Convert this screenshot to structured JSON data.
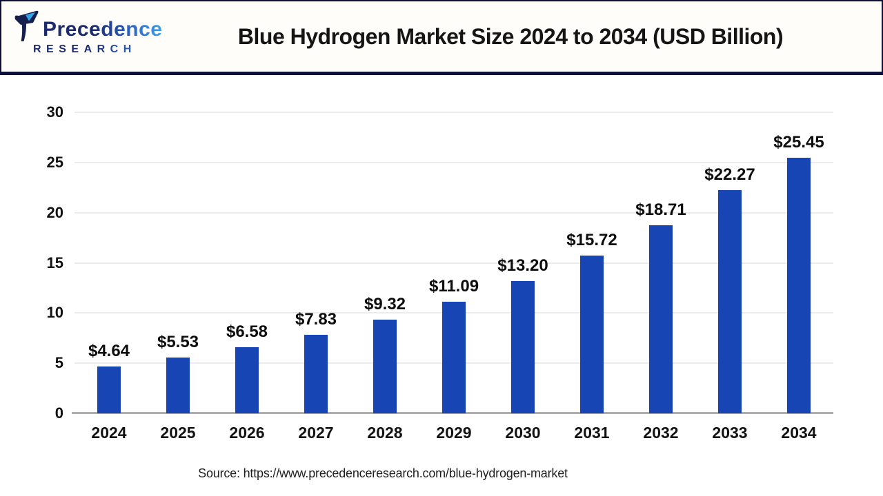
{
  "header": {
    "logo": {
      "brand": "Precedence",
      "subtitle": "RESEARCH"
    },
    "title": "Blue Hydrogen Market Size 2024 to 2034 (USD Billion)"
  },
  "chart_data": {
    "type": "bar",
    "title": "Blue Hydrogen Market Size 2024 to 2034 (USD Billion)",
    "unit": "USD Billion",
    "categories": [
      "2024",
      "2025",
      "2026",
      "2027",
      "2028",
      "2029",
      "2030",
      "2031",
      "2032",
      "2033",
      "2034"
    ],
    "values": [
      4.64,
      5.53,
      6.58,
      7.83,
      9.32,
      11.09,
      13.2,
      15.72,
      18.71,
      22.27,
      25.45
    ],
    "data_labels": [
      "$4.64",
      "$5.53",
      "$6.58",
      "$7.83",
      "$9.32",
      "$11.09",
      "$13.20",
      "$15.72",
      "$18.71",
      "$22.27",
      "$25.45"
    ],
    "ylim": [
      0,
      30
    ],
    "yticks": [
      0,
      5,
      10,
      15,
      20,
      25,
      30
    ],
    "grid": true,
    "legend": false,
    "xlabel": "",
    "ylabel": ""
  },
  "footer": {
    "source": "Source: https://www.precedenceresearch.com/blue-hydrogen-market"
  },
  "colors": {
    "bar": "#1746b4",
    "gridline": "#ebebeb",
    "baseline": "#aeaeae",
    "header_border": "#0f1238",
    "logo_dark": "#1b2b6e",
    "logo_light": "#41a0e8",
    "title_text": "#151515"
  }
}
